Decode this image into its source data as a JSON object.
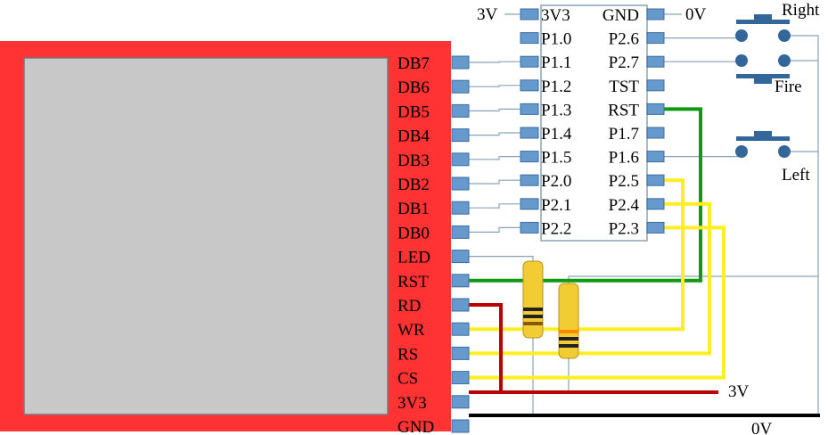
{
  "lcd": {
    "pins": [
      "DB7",
      "DB6",
      "DB5",
      "DB4",
      "DB3",
      "DB2",
      "DB1",
      "DB0",
      "LED",
      "RST",
      "RD",
      "WR",
      "RS",
      "CS",
      "3V3",
      "GND"
    ],
    "board_color": "#ff3333",
    "screen_color": "#c8c8c8"
  },
  "mcu": {
    "left_pins": [
      "3V3",
      "P1.0",
      "P1.1",
      "P1.2",
      "P1.3",
      "P1.4",
      "P1.5",
      "P2.0",
      "P2.1",
      "P2.2"
    ],
    "right_pins": [
      "GND",
      "P2.6",
      "P2.7",
      "TST",
      "RST",
      "P1.7",
      "P1.6",
      "P2.5",
      "P2.4",
      "P2.3"
    ]
  },
  "labels": {
    "supply_3v_top": "3V",
    "ground_0v_top": "0V",
    "supply_3v_bottom": "3V",
    "ground_0v_bottom": "0V"
  },
  "buttons": {
    "right": "Right",
    "fire": "Fire",
    "left": "Left"
  },
  "colors": {
    "pin": "#6699cc",
    "pin_border": "#3d6d9e",
    "wire_gray": "#8aa3b8",
    "wire_green": "#119911",
    "wire_yellow": "#ffee22",
    "wire_red": "#bb0000",
    "wire_black": "#000000",
    "button": "#336699",
    "resistor": "#f2cc33"
  }
}
